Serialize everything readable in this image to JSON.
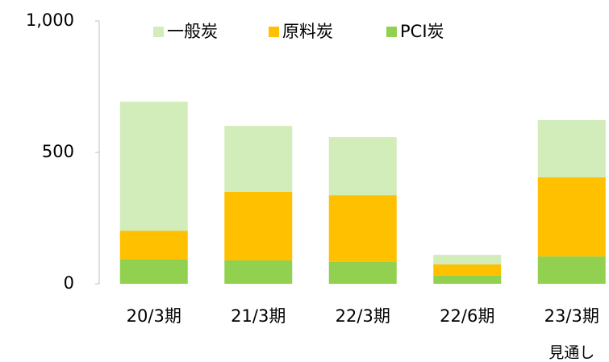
{
  "chart_data": {
    "type": "stacked_bar",
    "categories": [
      "20/3期",
      "21/3期",
      "22/3期",
      "22/6期",
      "23/3期"
    ],
    "series": [
      {
        "name": "一般炭",
        "color": "#d2ecba",
        "values": [
          491,
          251,
          221,
          36,
          218
        ]
      },
      {
        "name": "原料炭",
        "color": "#ffc000",
        "values": [
          110,
          261,
          254,
          43,
          301
        ]
      },
      {
        "name": "PCI炭",
        "color": "#92d050",
        "values": [
          92,
          89,
          83,
          31,
          104
        ]
      }
    ],
    "annotations": [
      {
        "text": "見通し",
        "category": 4
      }
    ],
    "ylim": [
      0,
      1000
    ],
    "yticks": [
      0,
      500,
      {
        "value": 1000,
        "label": "1,000"
      }
    ],
    "grid": false,
    "legend": "top"
  }
}
